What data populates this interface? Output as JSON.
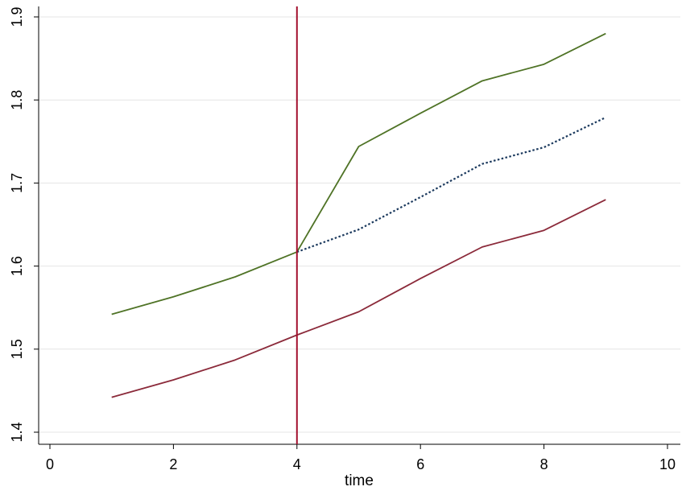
{
  "chart_data": {
    "type": "line",
    "title": "",
    "xlabel": "time",
    "ylabel": "",
    "xlim": [
      0,
      10
    ],
    "ylim": [
      1.4,
      1.9
    ],
    "x_ticks": [
      "0",
      "2",
      "4",
      "6",
      "8",
      "10"
    ],
    "y_ticks": [
      "1.4",
      "1.5",
      "1.6",
      "1.7",
      "1.8",
      "1.9"
    ],
    "grid": "horizontal",
    "legend": "none",
    "x": [
      1,
      2,
      3,
      4,
      5,
      6,
      7,
      8,
      9
    ],
    "series": [
      {
        "color": "#4f7326",
        "style": "solid",
        "values": [
          1.542,
          1.563,
          1.587,
          1.617,
          1.744,
          1.784,
          1.823,
          1.843,
          1.88
        ]
      },
      {
        "color": "#1c3a5e",
        "style": "dotted",
        "values": [
          null,
          null,
          null,
          1.617,
          1.644,
          1.683,
          1.723,
          1.743,
          1.779
        ]
      },
      {
        "color": "#8b2a3a",
        "style": "solid",
        "values": [
          1.442,
          1.463,
          1.487,
          1.517,
          1.545,
          1.585,
          1.623,
          1.643,
          1.68
        ]
      }
    ],
    "vline": {
      "x": 4,
      "color": "#a3102e"
    }
  }
}
